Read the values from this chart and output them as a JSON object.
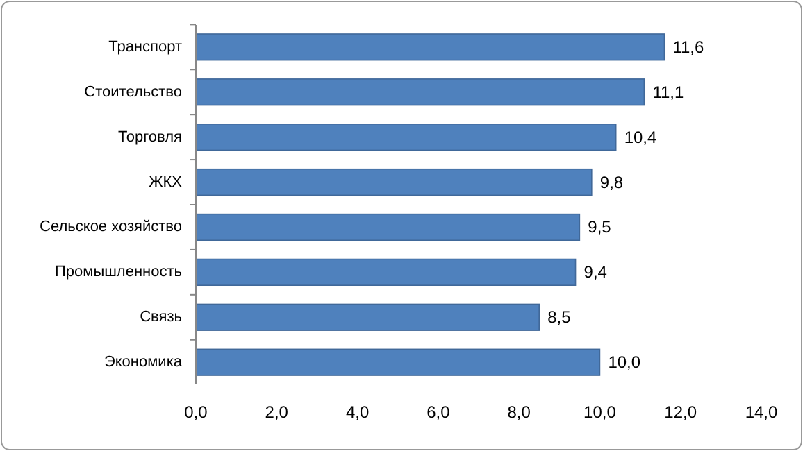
{
  "chart_data": {
    "type": "bar",
    "orientation": "horizontal",
    "categories": [
      "Транспорт",
      "Стоительство",
      "Торговля",
      "ЖКХ",
      "Сельское хозяйство",
      "Промышленность",
      "Связь",
      "Экономика"
    ],
    "values": [
      11.6,
      11.1,
      10.4,
      9.8,
      9.5,
      9.4,
      8.5,
      10.0
    ],
    "value_labels": [
      "11,6",
      "11,1",
      "10,4",
      "9,8",
      "9,5",
      "9,4",
      "8,5",
      "10,0"
    ],
    "color": "#4f81bd",
    "xlim": [
      0,
      14
    ],
    "xticks": [
      {
        "value": 0,
        "label": "0,0"
      },
      {
        "value": 2,
        "label": "2,0"
      },
      {
        "value": 4,
        "label": "4,0"
      },
      {
        "value": 6,
        "label": "6,0"
      },
      {
        "value": 8,
        "label": "8,0"
      },
      {
        "value": 10,
        "label": "10,0"
      },
      {
        "value": 12,
        "label": "12,0"
      },
      {
        "value": 14,
        "label": "14,0"
      }
    ],
    "grid": false
  }
}
